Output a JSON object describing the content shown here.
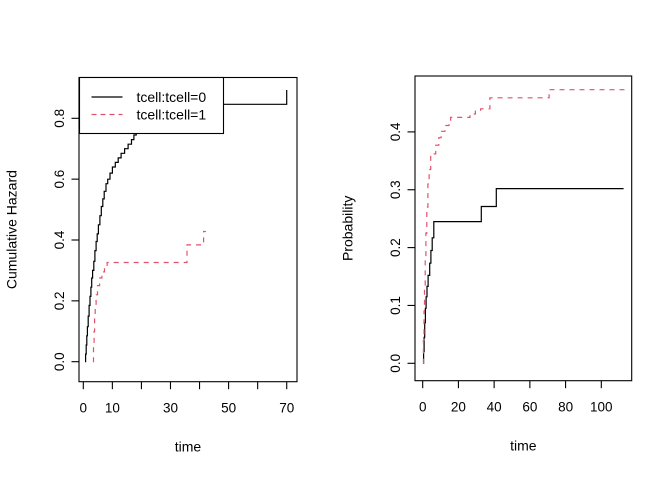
{
  "page": {
    "background": "#ffffff"
  },
  "chart_data": [
    {
      "type": "line",
      "subtype": "step-survival-curve",
      "title": "",
      "xlabel": "time",
      "ylabel": "Cumulative Hazard",
      "xlim": [
        -1.5,
        73.5
      ],
      "ylim": [
        -0.066,
        0.934
      ],
      "grid": false,
      "x_ticks": {
        "values": [
          0,
          10,
          20,
          30,
          40,
          50,
          60,
          70
        ],
        "labels": [
          "0",
          "10",
          "",
          "30",
          "",
          "50",
          "",
          "70"
        ]
      },
      "y_ticks": {
        "values": [
          0,
          0.2,
          0.4,
          0.6,
          0.8
        ],
        "labels": [
          "0.0",
          "0.2",
          "0.4",
          "0.6",
          "0.8"
        ]
      },
      "legend": {
        "position": "topleft",
        "entries": [
          {
            "label": "tcell:tcell=0",
            "color": "#000000",
            "dash": "solid"
          },
          {
            "label": "tcell:tcell=1",
            "color": "#df536b",
            "dash": "dashed"
          }
        ]
      },
      "series": [
        {
          "name": "tcell:tcell=0",
          "color": "#000000",
          "dash": "solid",
          "step": true,
          "points": [
            [
              0.6,
              0
            ],
            [
              0.8,
              0.025
            ],
            [
              1.0,
              0.055
            ],
            [
              1.2,
              0.085
            ],
            [
              1.4,
              0.115
            ],
            [
              1.7,
              0.15
            ],
            [
              2.0,
              0.185
            ],
            [
              2.3,
              0.215
            ],
            [
              2.6,
              0.245
            ],
            [
              2.9,
              0.275
            ],
            [
              3.2,
              0.3
            ],
            [
              3.6,
              0.33
            ],
            [
              4.0,
              0.365
            ],
            [
              4.4,
              0.395
            ],
            [
              4.8,
              0.42
            ],
            [
              5.2,
              0.45
            ],
            [
              5.7,
              0.48
            ],
            [
              6.2,
              0.51
            ],
            [
              6.7,
              0.535
            ],
            [
              7.2,
              0.56
            ],
            [
              7.8,
              0.585
            ],
            [
              8.4,
              0.6
            ],
            [
              9.2,
              0.62
            ],
            [
              10.0,
              0.64
            ],
            [
              11.0,
              0.655
            ],
            [
              12.0,
              0.67
            ],
            [
              13.0,
              0.685
            ],
            [
              14.2,
              0.7
            ],
            [
              15.4,
              0.715
            ],
            [
              16.6,
              0.73
            ],
            [
              17.4,
              0.745
            ],
            [
              18.2,
              0.765
            ],
            [
              19.0,
              0.785
            ],
            [
              20.0,
              0.805
            ],
            [
              21.0,
              0.825
            ],
            [
              22.0,
              0.846
            ],
            [
              70.0,
              0.846
            ],
            [
              70.0,
              0.893
            ]
          ]
        },
        {
          "name": "tcell:tcell=1",
          "color": "#df536b",
          "dash": "dashed",
          "step": true,
          "points": [
            [
              3.3,
              0
            ],
            [
              3.5,
              0.05
            ],
            [
              3.7,
              0.1
            ],
            [
              3.9,
              0.145
            ],
            [
              4.1,
              0.185
            ],
            [
              4.4,
              0.22
            ],
            [
              4.9,
              0.25
            ],
            [
              5.6,
              0.275
            ],
            [
              6.4,
              0.295
            ],
            [
              7.3,
              0.312
            ],
            [
              8.2,
              0.326
            ],
            [
              35.7,
              0.326
            ],
            [
              35.7,
              0.384
            ],
            [
              41.4,
              0.384
            ],
            [
              41.4,
              0.428
            ],
            [
              42.2,
              0.428
            ]
          ]
        }
      ]
    },
    {
      "type": "line",
      "subtype": "step-survival-curve",
      "title": "",
      "xlabel": "time",
      "ylabel": "Probability",
      "xlim": [
        -4.3,
        117.0
      ],
      "ylim": [
        -0.03,
        0.498
      ],
      "grid": false,
      "x_ticks": {
        "values": [
          0,
          20,
          40,
          60,
          80,
          100
        ],
        "labels": [
          "0",
          "20",
          "40",
          "60",
          "80",
          "100"
        ]
      },
      "y_ticks": {
        "values": [
          0,
          0.1,
          0.2,
          0.3,
          0.4
        ],
        "labels": [
          "0.0",
          "0.1",
          "0.2",
          "0.3",
          "0.4"
        ]
      },
      "legend": null,
      "series": [
        {
          "name": "tcell:tcell=0",
          "color": "#000000",
          "dash": "solid",
          "step": true,
          "points": [
            [
              0.3,
              0
            ],
            [
              0.5,
              0.02
            ],
            [
              0.8,
              0.045
            ],
            [
              1.1,
              0.07
            ],
            [
              1.5,
              0.095
            ],
            [
              1.9,
              0.115
            ],
            [
              2.4,
              0.133
            ],
            [
              3.0,
              0.152
            ],
            [
              3.9,
              0.173
            ],
            [
              4.6,
              0.195
            ],
            [
              5.3,
              0.217
            ],
            [
              6.2,
              0.245
            ],
            [
              32.8,
              0.245
            ],
            [
              32.8,
              0.271
            ],
            [
              41.2,
              0.271
            ],
            [
              41.2,
              0.302
            ],
            [
              112.5,
              0.302
            ]
          ]
        },
        {
          "name": "tcell:tcell=1",
          "color": "#df536b",
          "dash": "dashed",
          "step": true,
          "points": [
            [
              0.2,
              0
            ],
            [
              0.4,
              0.04
            ],
            [
              0.7,
              0.09
            ],
            [
              1.0,
              0.135
            ],
            [
              1.4,
              0.18
            ],
            [
              1.8,
              0.225
            ],
            [
              2.3,
              0.27
            ],
            [
              2.9,
              0.31
            ],
            [
              3.6,
              0.335
            ],
            [
              4.5,
              0.362
            ],
            [
              7.3,
              0.377
            ],
            [
              9.0,
              0.39
            ],
            [
              10.3,
              0.401
            ],
            [
              12.5,
              0.411
            ],
            [
              14.7,
              0.418
            ],
            [
              15.6,
              0.425
            ],
            [
              24.8,
              0.425
            ],
            [
              26.5,
              0.431
            ],
            [
              29.5,
              0.436
            ],
            [
              32.4,
              0.44
            ],
            [
              37.6,
              0.44
            ],
            [
              37.6,
              0.459
            ],
            [
              70.8,
              0.459
            ],
            [
              70.8,
              0.473
            ],
            [
              113.0,
              0.473
            ]
          ]
        }
      ]
    }
  ]
}
